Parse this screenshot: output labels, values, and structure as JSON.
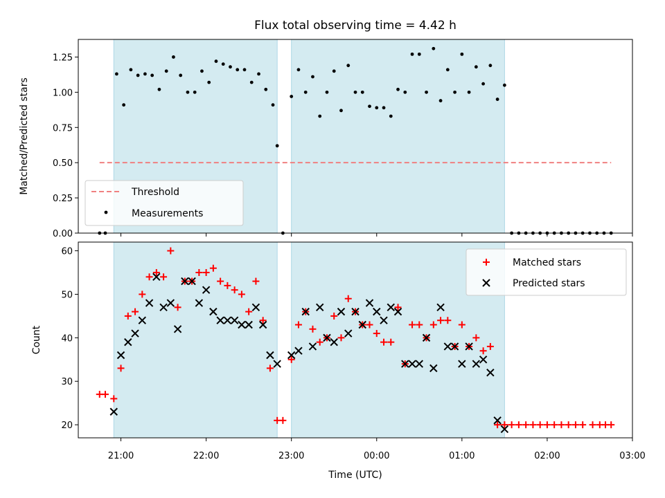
{
  "chart_data": [
    {
      "type": "scatter",
      "title": "Flux total observing time = 4.42 h",
      "ylabel": "Matched/Predicted stars",
      "xlabel": "",
      "ylim": [
        0,
        1.375
      ],
      "yticks": [
        "0.00",
        "0.25",
        "0.50",
        "0.75",
        "1.00",
        "1.25"
      ],
      "grid": false,
      "legend_position": "lower-left",
      "legend": [
        "Threshold",
        "Measurements"
      ],
      "threshold": {
        "name": "Threshold",
        "value": 0.5,
        "x_start": "20:45",
        "x_end": "02:45",
        "color": "#f08080"
      },
      "observing_windows": [
        [
          "20:55",
          "22:50"
        ],
        [
          "23:00",
          "01:30"
        ]
      ],
      "window_color": "#d4ebf1",
      "series": [
        {
          "name": "Measurements",
          "color": "#000000",
          "points": [
            [
              "20:45",
              0.0
            ],
            [
              "20:49",
              0.0
            ],
            [
              "20:57",
              1.13
            ],
            [
              "21:02",
              0.91
            ],
            [
              "21:07",
              1.16
            ],
            [
              "21:12",
              1.12
            ],
            [
              "21:17",
              1.13
            ],
            [
              "21:22",
              1.12
            ],
            [
              "21:27",
              1.02
            ],
            [
              "21:32",
              1.15
            ],
            [
              "21:37",
              1.25
            ],
            [
              "21:42",
              1.12
            ],
            [
              "21:47",
              1.0
            ],
            [
              "21:52",
              1.0
            ],
            [
              "21:57",
              1.15
            ],
            [
              "22:02",
              1.07
            ],
            [
              "22:07",
              1.22
            ],
            [
              "22:12",
              1.2
            ],
            [
              "22:17",
              1.18
            ],
            [
              "22:22",
              1.16
            ],
            [
              "22:27",
              1.16
            ],
            [
              "22:32",
              1.07
            ],
            [
              "22:37",
              1.13
            ],
            [
              "22:42",
              1.02
            ],
            [
              "22:47",
              0.91
            ],
            [
              "22:50",
              0.62
            ],
            [
              "22:54",
              0.0
            ],
            [
              "23:00",
              0.97
            ],
            [
              "23:05",
              1.16
            ],
            [
              "23:10",
              1.0
            ],
            [
              "23:15",
              1.11
            ],
            [
              "23:20",
              0.83
            ],
            [
              "23:25",
              1.0
            ],
            [
              "23:30",
              1.15
            ],
            [
              "23:35",
              0.87
            ],
            [
              "23:40",
              1.19
            ],
            [
              "23:45",
              1.0
            ],
            [
              "23:50",
              1.0
            ],
            [
              "23:55",
              0.9
            ],
            [
              "00:00",
              0.89
            ],
            [
              "00:05",
              0.89
            ],
            [
              "00:10",
              0.83
            ],
            [
              "00:15",
              1.02
            ],
            [
              "00:20",
              1.0
            ],
            [
              "00:25",
              1.27
            ],
            [
              "00:30",
              1.27
            ],
            [
              "00:35",
              1.0
            ],
            [
              "00:40",
              1.31
            ],
            [
              "00:45",
              0.94
            ],
            [
              "00:50",
              1.16
            ],
            [
              "00:55",
              1.0
            ],
            [
              "01:00",
              1.27
            ],
            [
              "01:05",
              1.0
            ],
            [
              "01:10",
              1.18
            ],
            [
              "01:15",
              1.06
            ],
            [
              "01:20",
              1.19
            ],
            [
              "01:25",
              0.95
            ],
            [
              "01:30",
              1.05
            ],
            [
              "01:35",
              0.0
            ],
            [
              "01:40",
              0.0
            ],
            [
              "01:45",
              0.0
            ],
            [
              "01:50",
              0.0
            ],
            [
              "01:55",
              0.0
            ],
            [
              "02:00",
              0.0
            ],
            [
              "02:05",
              0.0
            ],
            [
              "02:10",
              0.0
            ],
            [
              "02:15",
              0.0
            ],
            [
              "02:20",
              0.0
            ],
            [
              "02:25",
              0.0
            ],
            [
              "02:30",
              0.0
            ],
            [
              "02:35",
              0.0
            ],
            [
              "02:40",
              0.0
            ],
            [
              "02:45",
              0.0
            ]
          ]
        }
      ]
    },
    {
      "type": "scatter",
      "title": "",
      "ylabel": "Count",
      "xlabel": "Time (UTC)",
      "ylim": [
        17,
        62
      ],
      "yticks": [
        "20",
        "30",
        "40",
        "50",
        "60"
      ],
      "xticks": [
        "21:00",
        "22:00",
        "23:00",
        "00:00",
        "01:00",
        "02:00",
        "03:00"
      ],
      "x_range": [
        "20:30",
        "03:00"
      ],
      "grid": false,
      "legend_position": "upper-right",
      "legend": [
        "Matched stars",
        "Predicted stars"
      ],
      "observing_windows": [
        [
          "20:55",
          "22:50"
        ],
        [
          "23:00",
          "01:30"
        ]
      ],
      "window_color": "#d4ebf1",
      "series": [
        {
          "name": "Matched stars",
          "marker": "plus",
          "color": "#ff0000",
          "points": [
            [
              "20:45",
              27
            ],
            [
              "20:49",
              27
            ],
            [
              "20:55",
              26
            ],
            [
              "21:00",
              33
            ],
            [
              "21:05",
              45
            ],
            [
              "21:10",
              46
            ],
            [
              "21:15",
              50
            ],
            [
              "21:20",
              54
            ],
            [
              "21:25",
              55
            ],
            [
              "21:30",
              54
            ],
            [
              "21:35",
              60
            ],
            [
              "21:40",
              47
            ],
            [
              "21:45",
              53
            ],
            [
              "21:50",
              53
            ],
            [
              "21:55",
              55
            ],
            [
              "22:00",
              55
            ],
            [
              "22:05",
              56
            ],
            [
              "22:10",
              53
            ],
            [
              "22:15",
              52
            ],
            [
              "22:20",
              51
            ],
            [
              "22:25",
              50
            ],
            [
              "22:30",
              46
            ],
            [
              "22:35",
              53
            ],
            [
              "22:40",
              44
            ],
            [
              "22:45",
              33
            ],
            [
              "22:50",
              21
            ],
            [
              "22:54",
              21
            ],
            [
              "23:00",
              35
            ],
            [
              "23:05",
              43
            ],
            [
              "23:10",
              46
            ],
            [
              "23:15",
              42
            ],
            [
              "23:20",
              39
            ],
            [
              "23:25",
              40
            ],
            [
              "23:30",
              45
            ],
            [
              "23:35",
              40
            ],
            [
              "23:40",
              49
            ],
            [
              "23:45",
              46
            ],
            [
              "23:50",
              43
            ],
            [
              "23:55",
              43
            ],
            [
              "00:00",
              41
            ],
            [
              "00:05",
              39
            ],
            [
              "00:10",
              39
            ],
            [
              "00:15",
              47
            ],
            [
              "00:20",
              34
            ],
            [
              "00:25",
              43
            ],
            [
              "00:30",
              43
            ],
            [
              "00:35",
              40
            ],
            [
              "00:40",
              43
            ],
            [
              "00:45",
              44
            ],
            [
              "00:50",
              44
            ],
            [
              "00:55",
              38
            ],
            [
              "01:00",
              43
            ],
            [
              "01:05",
              38
            ],
            [
              "01:10",
              40
            ],
            [
              "01:15",
              37
            ],
            [
              "01:20",
              38
            ],
            [
              "01:25",
              20
            ],
            [
              "01:30",
              20
            ],
            [
              "01:35",
              20
            ],
            [
              "01:40",
              20
            ],
            [
              "01:45",
              20
            ],
            [
              "01:50",
              20
            ],
            [
              "01:55",
              20
            ],
            [
              "02:00",
              20
            ],
            [
              "02:05",
              20
            ],
            [
              "02:10",
              20
            ],
            [
              "02:15",
              20
            ],
            [
              "02:20",
              20
            ],
            [
              "02:25",
              20
            ],
            [
              "02:32",
              20
            ],
            [
              "02:37",
              20
            ],
            [
              "02:41",
              20
            ],
            [
              "02:45",
              20
            ]
          ]
        },
        {
          "name": "Predicted stars",
          "marker": "x",
          "color": "#000000",
          "points": [
            [
              "20:55",
              23
            ],
            [
              "21:00",
              36
            ],
            [
              "21:05",
              39
            ],
            [
              "21:10",
              41
            ],
            [
              "21:15",
              44
            ],
            [
              "21:20",
              48
            ],
            [
              "21:25",
              54
            ],
            [
              "21:30",
              47
            ],
            [
              "21:35",
              48
            ],
            [
              "21:40",
              42
            ],
            [
              "21:45",
              53
            ],
            [
              "21:50",
              53
            ],
            [
              "21:55",
              48
            ],
            [
              "22:00",
              51
            ],
            [
              "22:05",
              46
            ],
            [
              "22:10",
              44
            ],
            [
              "22:15",
              44
            ],
            [
              "22:20",
              44
            ],
            [
              "22:25",
              43
            ],
            [
              "22:30",
              43
            ],
            [
              "22:35",
              47
            ],
            [
              "22:40",
              43
            ],
            [
              "22:45",
              36
            ],
            [
              "22:50",
              34
            ],
            [
              "23:00",
              36
            ],
            [
              "23:05",
              37
            ],
            [
              "23:10",
              46
            ],
            [
              "23:15",
              38
            ],
            [
              "23:20",
              47
            ],
            [
              "23:25",
              40
            ],
            [
              "23:30",
              39
            ],
            [
              "23:35",
              46
            ],
            [
              "23:40",
              41
            ],
            [
              "23:45",
              46
            ],
            [
              "23:50",
              43
            ],
            [
              "23:55",
              48
            ],
            [
              "00:00",
              46
            ],
            [
              "00:05",
              44
            ],
            [
              "00:10",
              47
            ],
            [
              "00:15",
              46
            ],
            [
              "00:20",
              34
            ],
            [
              "00:25",
              34
            ],
            [
              "00:30",
              34
            ],
            [
              "00:35",
              40
            ],
            [
              "00:40",
              33
            ],
            [
              "00:45",
              47
            ],
            [
              "00:50",
              38
            ],
            [
              "00:55",
              38
            ],
            [
              "01:00",
              34
            ],
            [
              "01:05",
              38
            ],
            [
              "01:10",
              34
            ],
            [
              "01:15",
              35
            ],
            [
              "01:20",
              32
            ],
            [
              "01:25",
              21
            ],
            [
              "01:30",
              19
            ]
          ]
        }
      ]
    }
  ]
}
